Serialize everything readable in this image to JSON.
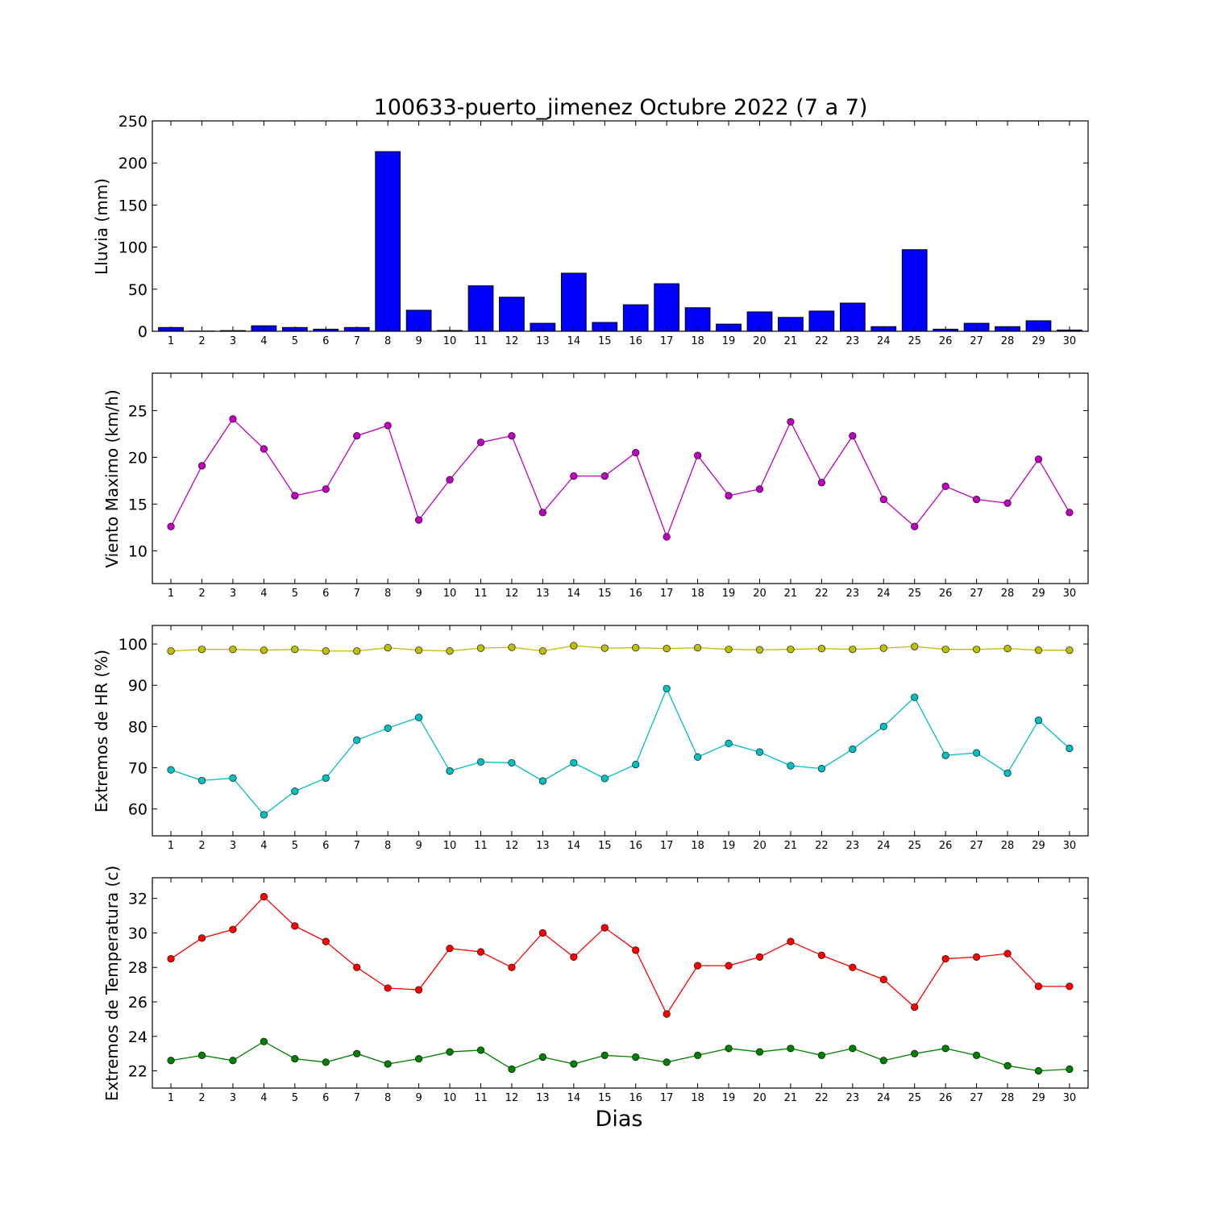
{
  "title": "100633-puerto_jimenez Octubre 2022  (7 a 7)",
  "xlabel": "Dias",
  "colors": {
    "rain": "#0000ff",
    "wind": "#bf00bf",
    "hr_max": "#bfbf00",
    "hr_min": "#00bfbf",
    "temp_max": "#ff0000",
    "temp_min": "#008000"
  },
  "chart_data": [
    {
      "type": "bar",
      "title": "100633-puerto_jimenez Octubre 2022  (7 a 7)",
      "ylabel": "Lluvia (mm)",
      "xlabel": "",
      "categories": [
        "1",
        "2",
        "3",
        "4",
        "5",
        "6",
        "7",
        "8",
        "9",
        "10",
        "11",
        "12",
        "13",
        "14",
        "15",
        "16",
        "17",
        "18",
        "19",
        "20",
        "21",
        "22",
        "23",
        "24",
        "25",
        "26",
        "27",
        "28",
        "29",
        "30"
      ],
      "values": [
        4.5,
        0.3,
        0.8,
        6.5,
        4.5,
        2.5,
        4.5,
        213.5,
        25,
        1,
        54,
        40.5,
        9.5,
        69,
        10.5,
        31.5,
        56.5,
        28,
        8.5,
        23,
        16.5,
        24,
        33.5,
        5.5,
        97,
        2.5,
        9.5,
        5.5,
        12.5,
        1.5
      ],
      "ylim": [
        0,
        250
      ],
      "yticks": [
        0,
        50,
        100,
        150,
        200,
        250
      ],
      "grid": false
    },
    {
      "type": "line",
      "ylabel": "Viento Maximo (km/h)",
      "xlabel": "",
      "categories": [
        "1",
        "2",
        "3",
        "4",
        "5",
        "6",
        "7",
        "8",
        "9",
        "10",
        "11",
        "12",
        "13",
        "14",
        "15",
        "16",
        "17",
        "18",
        "19",
        "20",
        "21",
        "22",
        "23",
        "24",
        "25",
        "26",
        "27",
        "28",
        "29",
        "30"
      ],
      "series": [
        {
          "values": [
            12.6,
            19.1,
            24.1,
            20.9,
            15.9,
            16.6,
            22.3,
            23.4,
            13.3,
            17.6,
            21.6,
            22.3,
            14.1,
            18.0,
            18.0,
            20.5,
            11.5,
            20.2,
            15.9,
            16.6,
            23.8,
            17.3,
            22.3,
            15.5,
            12.6,
            16.9,
            15.5,
            15.1,
            19.8,
            14.1
          ]
        }
      ],
      "ylim": [
        6.5,
        29
      ],
      "yticks": [
        10,
        15,
        20,
        25
      ],
      "grid": false
    },
    {
      "type": "line",
      "ylabel": "Extremos de HR (%)",
      "xlabel": "",
      "categories": [
        "1",
        "2",
        "3",
        "4",
        "5",
        "6",
        "7",
        "8",
        "9",
        "10",
        "11",
        "12",
        "13",
        "14",
        "15",
        "16",
        "17",
        "18",
        "19",
        "20",
        "21",
        "22",
        "23",
        "24",
        "25",
        "26",
        "27",
        "28",
        "29",
        "30"
      ],
      "series": [
        {
          "values": [
            98.3,
            98.7,
            98.7,
            98.5,
            98.7,
            98.3,
            98.3,
            99.1,
            98.5,
            98.3,
            99.0,
            99.2,
            98.3,
            99.6,
            99.0,
            99.1,
            98.9,
            99.1,
            98.7,
            98.6,
            98.7,
            98.9,
            98.7,
            99.0,
            99.4,
            98.7,
            98.7,
            98.9,
            98.5,
            98.5
          ]
        },
        {
          "values": [
            69.5,
            66.9,
            67.5,
            58.6,
            64.3,
            67.5,
            76.7,
            79.6,
            82.2,
            69.2,
            71.4,
            71.2,
            66.8,
            71.2,
            67.4,
            70.8,
            89.2,
            72.6,
            75.9,
            73.8,
            70.5,
            69.8,
            74.5,
            80.0,
            87.1,
            73.0,
            73.6,
            68.7,
            81.5,
            74.7
          ]
        }
      ],
      "ylim": [
        53.5,
        104.5
      ],
      "yticks": [
        60,
        70,
        80,
        90,
        100
      ],
      "grid": false
    },
    {
      "type": "line",
      "ylabel": "Extremos de Temperatura (c)",
      "xlabel": "Dias",
      "categories": [
        "1",
        "2",
        "3",
        "4",
        "5",
        "6",
        "7",
        "8",
        "9",
        "10",
        "11",
        "12",
        "13",
        "14",
        "15",
        "16",
        "17",
        "18",
        "19",
        "20",
        "21",
        "22",
        "23",
        "24",
        "25",
        "26",
        "27",
        "28",
        "29",
        "30"
      ],
      "series": [
        {
          "values": [
            28.5,
            29.7,
            30.2,
            32.1,
            30.4,
            29.5,
            28.0,
            26.8,
            26.7,
            29.1,
            28.9,
            28.0,
            30.0,
            28.6,
            30.3,
            29.0,
            25.3,
            28.1,
            28.1,
            28.6,
            29.5,
            28.7,
            28.0,
            27.3,
            25.7,
            28.5,
            28.6,
            28.8,
            26.9,
            26.9
          ]
        },
        {
          "values": [
            22.6,
            22.9,
            22.6,
            23.7,
            22.7,
            22.5,
            23.0,
            22.4,
            22.7,
            23.1,
            23.2,
            22.1,
            22.8,
            22.4,
            22.9,
            22.8,
            22.5,
            22.9,
            23.3,
            23.1,
            23.3,
            22.9,
            23.3,
            22.6,
            23.0,
            23.3,
            22.9,
            22.3,
            22.0,
            22.1
          ]
        }
      ],
      "ylim": [
        21.0,
        33.2
      ],
      "yticks": [
        22,
        24,
        26,
        28,
        30,
        32
      ],
      "grid": false
    }
  ]
}
